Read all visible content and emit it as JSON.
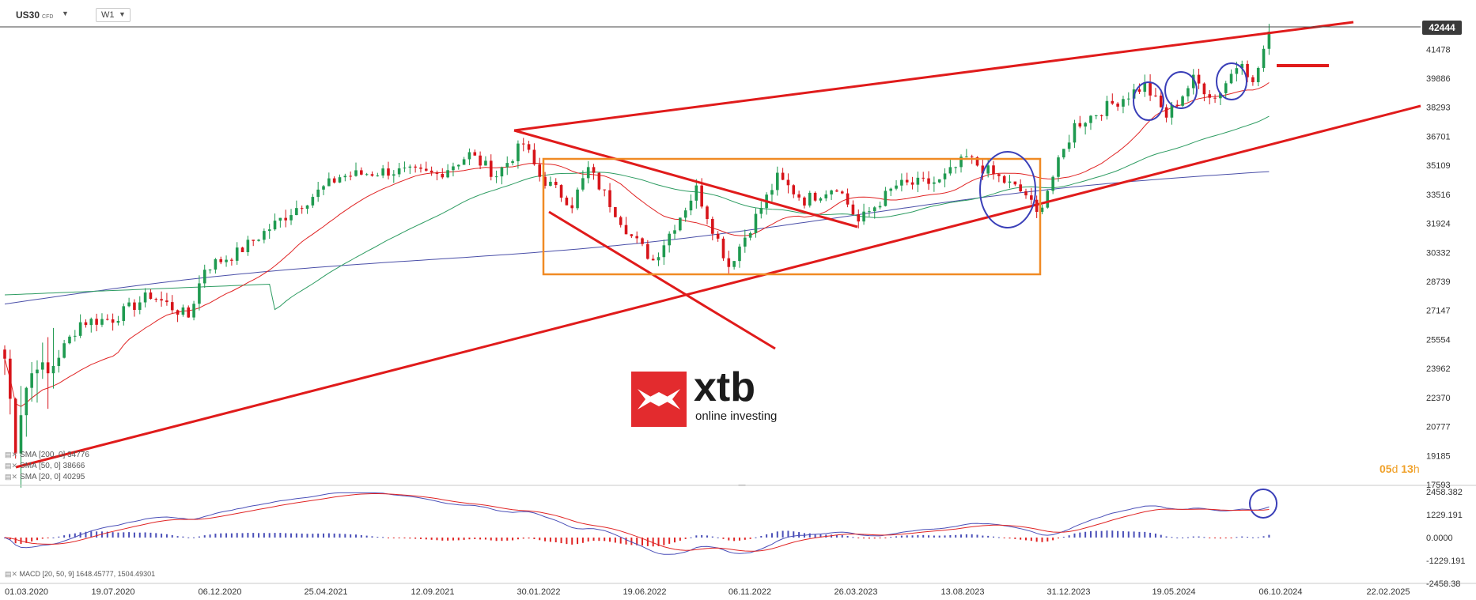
{
  "toolbar": {
    "symbol": "US30",
    "symbol_suffix": "CFD",
    "timeframe": "W1"
  },
  "logo": {
    "brand": "xtb",
    "tagline": "online investing"
  },
  "indicators": {
    "sma200": "SMA [200, 0] 34776",
    "sma50": "SMA [50, 0] 38666",
    "sma20": "SMA [20, 0] 40295",
    "macd": "MACD [20, 50, 9] 1648.45777, 1504.49301"
  },
  "countdown": {
    "days": "05",
    "d": "d",
    "hours": "13",
    "h": "h"
  },
  "colors": {
    "up_candle": "#1f9a50",
    "down_candle": "#d7141a",
    "trendline": "#e01b1b",
    "box": "#f08a24",
    "circle": "#3a3fb8",
    "sma200": "#4a4fa8",
    "sma50": "#2e9c62",
    "sma20": "#e02424",
    "macd_line": "#4a4fb8",
    "signal_line": "#e02424",
    "price_label_bg": "#3a3a3a"
  },
  "chart_data": {
    "type": "candlestick",
    "title": "US30",
    "xlabel": "",
    "ylabel": "",
    "x_ticks": [
      "01.03.2020",
      "19.07.2020",
      "06.12.2020",
      "25.04.2021",
      "12.09.2021",
      "30.01.2022",
      "19.06.2022",
      "06.11.2022",
      "26.03.2023",
      "13.08.2023",
      "31.12.2023",
      "19.05.2024",
      "06.10.2024",
      "22.02.2025"
    ],
    "y_ticks": [
      17593,
      19185,
      20777,
      22370,
      23962,
      25554,
      27147,
      28739,
      30332,
      31924,
      33516,
      35109,
      36701,
      38293,
      39886,
      41478
    ],
    "ylim": [
      17593,
      43071
    ],
    "current_price": 42444,
    "last_date": "2024-08-25",
    "x_range": [
      "2020-03-01",
      "2025-02-22"
    ],
    "series": [
      {
        "name": "SMA [200, 0]",
        "last": 34776
      },
      {
        "name": "SMA [50, 0]",
        "last": 38666
      },
      {
        "name": "SMA [20, 0]",
        "last": 40295
      }
    ],
    "macd": {
      "name": "MACD [20, 50, 9]",
      "macd": 1648.45777,
      "signal": 1504.49301,
      "y_ticks": [
        2458.382,
        1229.191,
        0.0,
        -1229.191,
        -2458.38
      ]
    },
    "price_keypoints": [
      [
        "2020-03-01",
        24000
      ],
      [
        "2020-03-22",
        19500
      ],
      [
        "2020-04-26",
        23800
      ],
      [
        "2020-06-07",
        26500
      ],
      [
        "2020-07-19",
        26700
      ],
      [
        "2020-09-06",
        28000
      ],
      [
        "2020-10-25",
        26800
      ],
      [
        "2020-11-15",
        29500
      ],
      [
        "2020-12-27",
        30300
      ],
      [
        "2021-03-14",
        32800
      ],
      [
        "2021-05-09",
        34500
      ],
      [
        "2021-07-11",
        34800
      ],
      [
        "2021-09-12",
        34600
      ],
      [
        "2021-10-24",
        35700
      ],
      [
        "2021-11-28",
        34600
      ],
      [
        "2022-01-02",
        36300
      ],
      [
        "2022-01-23",
        34500
      ],
      [
        "2022-03-06",
        33000
      ],
      [
        "2022-03-27",
        34900
      ],
      [
        "2022-05-22",
        31200
      ],
      [
        "2022-06-19",
        29900
      ],
      [
        "2022-08-14",
        33800
      ],
      [
        "2022-09-25",
        29600
      ],
      [
        "2022-11-27",
        34400
      ],
      [
        "2023-01-01",
        33200
      ],
      [
        "2023-02-12",
        34000
      ],
      [
        "2023-03-12",
        32000
      ],
      [
        "2023-04-30",
        34000
      ],
      [
        "2023-06-25",
        34200
      ],
      [
        "2023-07-30",
        35500
      ],
      [
        "2023-10-15",
        33500
      ],
      [
        "2023-10-29",
        32400
      ],
      [
        "2023-12-17",
        37300
      ],
      [
        "2024-03-17",
        39500
      ],
      [
        "2024-04-14",
        37800
      ],
      [
        "2024-05-19",
        39800
      ],
      [
        "2024-06-16",
        38800
      ],
      [
        "2024-07-21",
        41000
      ],
      [
        "2024-08-04",
        39500
      ],
      [
        "2024-08-25",
        42444
      ]
    ],
    "annotations": [
      "rising wedge: upper trendline and lower trendline",
      "descending channel lines in 2022",
      "orange consolidation rectangle 2022-2023",
      "blue ellipses marking pullbacks to SMA20",
      "short red horizontal level near 40300"
    ]
  }
}
